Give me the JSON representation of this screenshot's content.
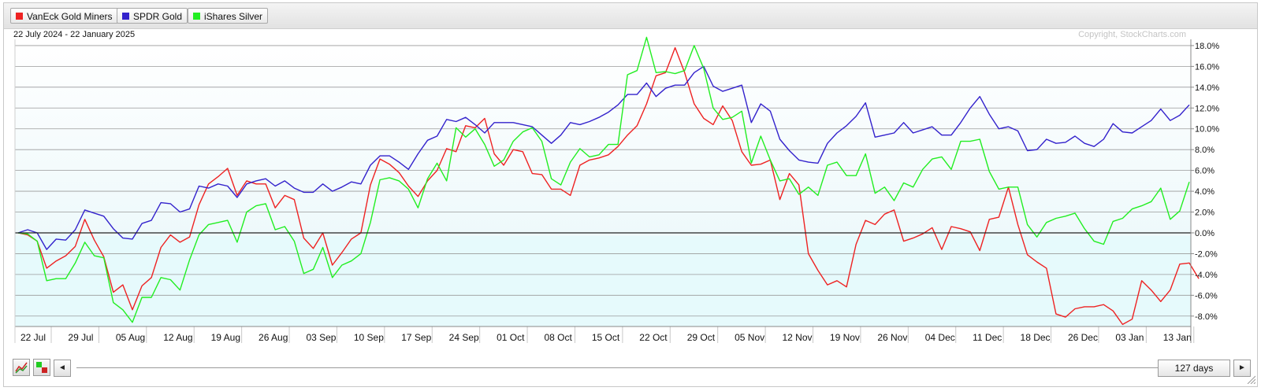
{
  "legend": {
    "items": [
      {
        "label": "VanEck Gold Miners",
        "color": "#ee2222"
      },
      {
        "label": "SPDR Gold",
        "color": "#3322cc"
      },
      {
        "label": "iShares Silver",
        "color": "#22ee22"
      }
    ]
  },
  "header": {
    "date_range": "22 July 2024 - 22 January 2025",
    "copyright": "Copyright, StockCharts.com"
  },
  "controls": {
    "period_label": "127 days",
    "prev_icon": "◄",
    "next_icon": "►",
    "chart_style_icon": "line-chart-icon",
    "color_icon": "color-swatch-icon",
    "resize_icon": "resize-grip-icon"
  },
  "chart_data": {
    "type": "line",
    "title": "",
    "subtitle": "22 July 2024 - 22 January 2025",
    "xlabel": "",
    "ylabel": "",
    "ylim": [
      -9,
      18.6
    ],
    "y_ticks": [
      18,
      16,
      14,
      12,
      10,
      8,
      6,
      4,
      2,
      0,
      -2,
      -4,
      -6,
      -8
    ],
    "y_tick_labels": [
      "18.0%",
      "16.0%",
      "14.0%",
      "12.0%",
      "10.0%",
      "8.0%",
      "6.0%",
      "4.0%",
      "2.0%",
      "0.0%",
      "-2.0%",
      "-4.0%",
      "-6.0%",
      "-8.0%"
    ],
    "x_ticks": [
      {
        "label": "22 Jul",
        "index": 0
      },
      {
        "label": "29 Jul",
        "index": 5
      },
      {
        "label": "05 Aug",
        "index": 10
      },
      {
        "label": "12 Aug",
        "index": 15
      },
      {
        "label": "19 Aug",
        "index": 20
      },
      {
        "label": "26 Aug",
        "index": 25
      },
      {
        "label": "03 Sep",
        "index": 30
      },
      {
        "label": "10 Sep",
        "index": 35
      },
      {
        "label": "17 Sep",
        "index": 40
      },
      {
        "label": "24 Sep",
        "index": 45
      },
      {
        "label": "01 Oct",
        "index": 50
      },
      {
        "label": "08 Oct",
        "index": 55
      },
      {
        "label": "15 Oct",
        "index": 60
      },
      {
        "label": "22 Oct",
        "index": 65
      },
      {
        "label": "29 Oct",
        "index": 70
      },
      {
        "label": "05 Nov",
        "index": 75
      },
      {
        "label": "12 Nov",
        "index": 80
      },
      {
        "label": "19 Nov",
        "index": 85
      },
      {
        "label": "26 Nov",
        "index": 90
      },
      {
        "label": "04 Dec",
        "index": 95
      },
      {
        "label": "11 Dec",
        "index": 100
      },
      {
        "label": "18 Dec",
        "index": 105
      },
      {
        "label": "26 Dec",
        "index": 110
      },
      {
        "label": "03 Jan",
        "index": 115
      },
      {
        "label": "13 Jan",
        "index": 120
      }
    ],
    "n_points": 124,
    "zero_line": true,
    "grid": true,
    "legend_position": "top-left",
    "series": [
      {
        "name": "VanEck Gold Miners",
        "color": "#ee2222",
        "values": [
          0,
          -0.2,
          -0.8,
          -3.4,
          -2.7,
          -2.2,
          -1.3,
          1.3,
          -0.7,
          -2.3,
          -5.7,
          -5.0,
          -7.4,
          -5.1,
          -4.3,
          -1.4,
          -0.2,
          -0.9,
          -0.4,
          2.7,
          4.7,
          5.4,
          6.2,
          3.6,
          5.0,
          4.7,
          4.7,
          2.4,
          3.6,
          3.2,
          -0.5,
          -1.5,
          0.0,
          -3.1,
          -1.9,
          -0.6,
          0.0,
          4.6,
          7.1,
          6.6,
          5.8,
          4.5,
          3.5,
          5.0,
          6.0,
          8.1,
          7.8,
          10.3,
          10.1,
          11.0,
          7.6,
          6.5,
          8.0,
          7.8,
          5.7,
          5.6,
          4.2,
          4.2,
          3.6,
          6.5,
          7.0,
          7.2,
          7.5,
          8.3,
          9.4,
          10.3,
          12.4,
          15.1,
          15.4,
          17.8,
          15.4,
          12.4,
          11.0,
          10.4,
          12.2,
          10.8,
          7.8,
          6.5,
          6.6,
          7.0,
          3.2,
          5.7,
          4.6,
          -2.0,
          -3.6,
          -5.0,
          -4.6,
          -5.2,
          -1.1,
          1.2,
          0.8,
          1.8,
          2.2,
          -0.8,
          -0.5,
          -0.1,
          0.5,
          -1.6,
          0.6,
          0.4,
          0.1,
          -1.7,
          1.3,
          1.5,
          4.4,
          0.8,
          -2.1,
          -2.8,
          -3.4,
          -7.8,
          -8.1,
          -7.3,
          -7.1,
          -7.1,
          -6.9,
          -7.5,
          -8.8,
          -8.3,
          -4.6,
          -5.5,
          -6.6,
          -5.5,
          -3.0,
          -2.9,
          -4.4
        ]
      },
      {
        "name": "SPDR Gold",
        "color": "#3322cc",
        "values": [
          0,
          0.3,
          0,
          -1.6,
          -0.6,
          -0.7,
          0.3,
          2.2,
          1.9,
          1.6,
          0.4,
          -0.5,
          -0.6,
          0.9,
          1.2,
          2.9,
          2.8,
          2.0,
          2.3,
          4.5,
          4.3,
          4.7,
          4.5,
          3.4,
          4.7,
          5.0,
          5.2,
          4.5,
          5.0,
          4.3,
          3.9,
          3.9,
          4.7,
          4.0,
          4.4,
          4.9,
          4.7,
          6.5,
          7.4,
          7.4,
          6.8,
          6.1,
          7.6,
          8.9,
          9.3,
          10.9,
          10.7,
          11.1,
          10.4,
          9.6,
          10.6,
          10.6,
          10.6,
          10.4,
          10.2,
          9.4,
          8.6,
          9.4,
          10.6,
          10.4,
          10.7,
          11.1,
          11.6,
          12.3,
          13.3,
          13.3,
          14.4,
          13.1,
          13.9,
          14.2,
          14.2,
          15.4,
          16.0,
          14.1,
          13.6,
          13.9,
          14.2,
          10.6,
          12.4,
          11.7,
          9.0,
          7.9,
          7.0,
          6.8,
          6.7,
          8.6,
          9.6,
          10.3,
          11.2,
          12.5,
          9.2,
          9.4,
          9.6,
          10.6,
          9.6,
          9.9,
          10.2,
          9.4,
          9.4,
          10.6,
          12.0,
          13.1,
          11.4,
          10.0,
          10.2,
          9.8,
          7.9,
          8.0,
          9.0,
          8.6,
          8.7,
          9.3,
          8.6,
          8.3,
          9.0,
          10.5,
          9.7,
          9.6,
          10.2,
          10.8,
          11.9,
          10.8,
          11.3,
          12.3
        ]
      },
      {
        "name": "iShares Silver",
        "color": "#22ee22",
        "values": [
          0,
          -0.1,
          -0.8,
          -4.6,
          -4.4,
          -4.4,
          -2.9,
          -0.9,
          -2.2,
          -2.4,
          -6.7,
          -7.4,
          -8.6,
          -6.2,
          -6.2,
          -4.3,
          -4.5,
          -5.5,
          -2.6,
          -0.2,
          0.8,
          1.0,
          1.2,
          -0.9,
          2.0,
          2.6,
          2.8,
          0.3,
          0.6,
          -0.8,
          -3.9,
          -3.5,
          -1.4,
          -4.3,
          -3.1,
          -2.7,
          -2.0,
          1.0,
          5.1,
          5.3,
          5.0,
          4.2,
          2.4,
          5.2,
          6.7,
          5.0,
          10.1,
          9.2,
          10.0,
          8.5,
          6.4,
          7.0,
          8.8,
          9.7,
          10.1,
          8.8,
          5.2,
          4.6,
          6.8,
          8.1,
          7.3,
          7.5,
          8.5,
          8.5,
          15.2,
          15.6,
          18.8,
          15.4,
          15.5,
          15.3,
          15.6,
          18.0,
          15.8,
          12.0,
          10.9,
          11.1,
          11.7,
          6.7,
          9.3,
          7.0,
          5.0,
          5.2,
          3.7,
          4.4,
          3.6,
          6.5,
          6.8,
          5.5,
          5.5,
          7.6,
          3.8,
          4.4,
          3.1,
          4.8,
          4.4,
          6.1,
          7.1,
          7.3,
          6.1,
          8.8,
          8.8,
          9.0,
          5.9,
          4.2,
          4.4,
          4.4,
          0.8,
          -0.4,
          1.0,
          1.4,
          1.6,
          1.9,
          0.4,
          -0.8,
          -1.1,
          1.1,
          1.4,
          2.3,
          2.6,
          3.0,
          4.3,
          1.3,
          2.1,
          4.9
        ]
      }
    ]
  }
}
